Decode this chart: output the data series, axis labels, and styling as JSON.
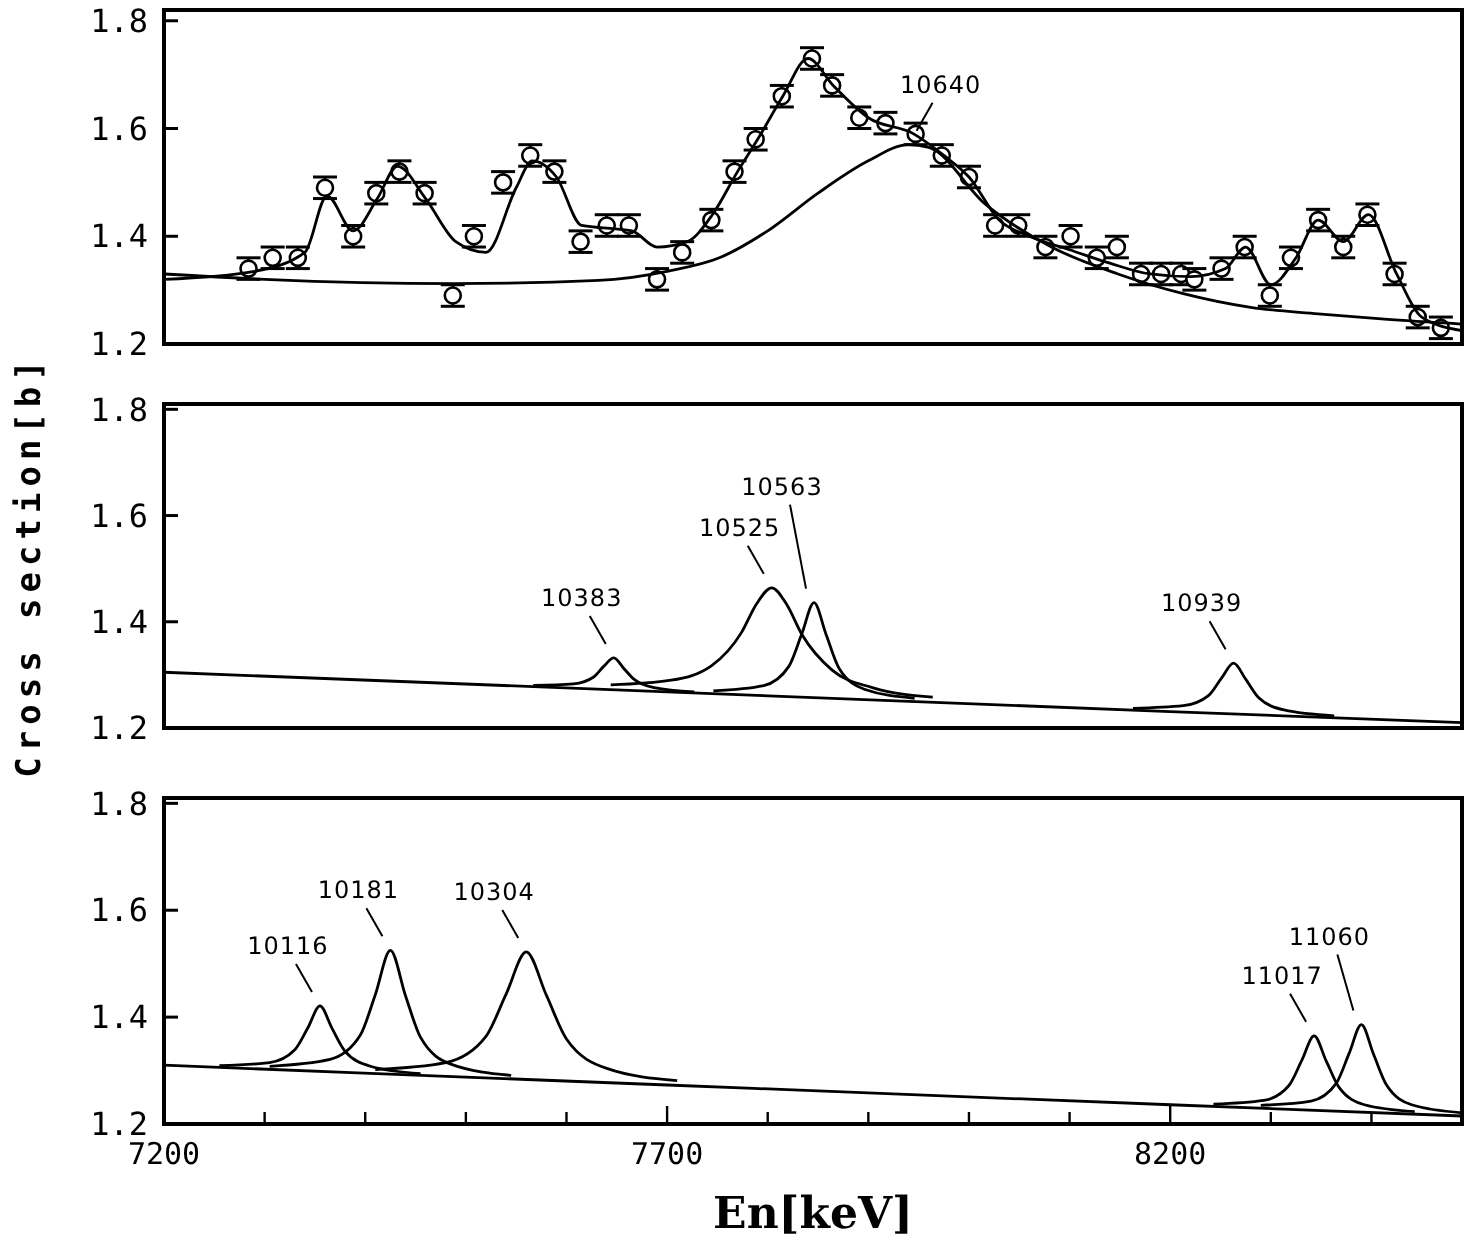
{
  "chart_data": [
    {
      "type": "line",
      "xlim": [
        7200,
        8490
      ],
      "ylim": [
        1.2,
        1.82
      ],
      "yticks": [
        1.2,
        1.4,
        1.6,
        1.8
      ],
      "tick_labels": "y",
      "line_style": "solid",
      "annotations": [
        {
          "text": "10640",
          "x": 7940,
          "y": 1.57
        }
      ],
      "series": [
        {
          "type": "scatter",
          "marker": "circle",
          "color": "#000000",
          "errors": [
            0.02,
            0.02,
            0.02,
            0.02,
            0.02,
            0.02,
            0.02,
            0.02,
            0.02,
            0.02,
            0.02,
            0.02,
            0.02,
            0.02,
            0.02,
            0.02,
            0.02,
            0.02,
            0.02,
            0.02,
            0.02,
            0.02,
            0.02,
            0.02,
            0.02,
            0.02,
            0.02,
            0.02,
            0.02,
            0.02,
            0.02,
            0.02,
            0.02,
            0.02,
            0.02,
            0.02,
            0.02,
            0.02,
            0.02,
            0.02,
            0.02,
            0.02,
            0.02,
            0.02,
            0.02,
            0.02,
            0.02,
            0.02,
            0.02
          ],
          "x": [
            7284,
            7308,
            7333,
            7360,
            7388,
            7411,
            7434,
            7459,
            7487,
            7508,
            7537,
            7564,
            7588,
            7614,
            7640,
            7662,
            7690,
            7715,
            7744,
            7767,
            7788,
            7814,
            7844,
            7864,
            7891,
            7917,
            7947,
            7973,
            8000,
            8026,
            8049,
            8076,
            8101,
            8127,
            8147,
            8171,
            8191,
            8211,
            8224,
            8251,
            8274,
            8299,
            8320,
            8347,
            8372,
            8396,
            8423,
            8446,
            8469
          ],
          "values": [
            1.34,
            1.36,
            1.36,
            1.49,
            1.4,
            1.48,
            1.52,
            1.48,
            1.29,
            1.4,
            1.5,
            1.55,
            1.52,
            1.39,
            1.42,
            1.42,
            1.32,
            1.37,
            1.43,
            1.52,
            1.58,
            1.66,
            1.73,
            1.68,
            1.62,
            1.61,
            1.59,
            1.55,
            1.51,
            1.42,
            1.42,
            1.38,
            1.4,
            1.36,
            1.38,
            1.33,
            1.33,
            1.33,
            1.32,
            1.34,
            1.38,
            1.29,
            1.36,
            1.43,
            1.38,
            1.44,
            1.33,
            1.25,
            1.23
          ]
        },
        {
          "type": "line",
          "color": "#000000",
          "x": [
            7200,
            7290,
            7340,
            7362,
            7388,
            7412,
            7432,
            7460,
            7490,
            7520,
            7550,
            7566,
            7590,
            7615,
            7640,
            7665,
            7690,
            7720,
            7745,
            7770,
            7790,
            7815,
            7840,
            7865,
            7900,
            7945,
            7975,
            8000,
            8030,
            8060,
            8100,
            8140,
            8180,
            8220,
            8255,
            8275,
            8300,
            8325,
            8347,
            8372,
            8397,
            8425,
            8450,
            8490
          ],
          "values": [
            1.32,
            1.335,
            1.37,
            1.475,
            1.41,
            1.47,
            1.53,
            1.47,
            1.39,
            1.37,
            1.49,
            1.54,
            1.51,
            1.42,
            1.415,
            1.41,
            1.38,
            1.39,
            1.44,
            1.52,
            1.58,
            1.66,
            1.73,
            1.68,
            1.62,
            1.59,
            1.55,
            1.51,
            1.43,
            1.4,
            1.375,
            1.35,
            1.33,
            1.325,
            1.34,
            1.38,
            1.31,
            1.36,
            1.43,
            1.39,
            1.44,
            1.33,
            1.25,
            1.225
          ]
        },
        {
          "type": "line",
          "color": "#000000",
          "x": [
            7200,
            7300,
            7487,
            7632,
            7700,
            7752,
            7800,
            7850,
            7900,
            7940,
            7960,
            8016,
            8082,
            8148,
            8214,
            8280,
            8347,
            8413,
            8490
          ],
          "values": [
            1.33,
            1.32,
            1.312,
            1.318,
            1.335,
            1.36,
            1.41,
            1.48,
            1.54,
            1.57,
            1.565,
            1.46,
            1.38,
            1.33,
            1.293,
            1.268,
            1.256,
            1.246,
            1.237
          ]
        }
      ]
    },
    {
      "type": "line",
      "xlim": [
        7200,
        8490
      ],
      "ylim": [
        1.2,
        1.81
      ],
      "yticks": [
        1.2,
        1.4,
        1.6,
        1.8
      ],
      "tick_labels": "y",
      "line_style": "solid",
      "ylabel": "Cross section[b]",
      "annotations": [
        {
          "text": "10383",
          "x": 7647,
          "y": 1.332
        },
        {
          "text": "10525",
          "x": 7804,
          "y": 1.464
        },
        {
          "text": "10563",
          "x": 7846,
          "y": 1.436
        },
        {
          "text": "10939",
          "x": 8263,
          "y": 1.322
        }
      ],
      "series": [
        {
          "type": "line",
          "color": "#000000",
          "x": [
            7200,
            7700,
            8200,
            8490
          ],
          "values": [
            1.305,
            1.268,
            1.231,
            1.21
          ]
        },
        {
          "type": "line",
          "color": "#000000",
          "x": [
            7567,
            7607,
            7627,
            7637,
            7647,
            7657,
            7667,
            7687,
            7727
          ],
          "values": [
            1.28,
            1.283,
            1.296,
            1.316,
            1.332,
            1.312,
            1.292,
            1.276,
            1.268
          ]
        },
        {
          "type": "line",
          "color": "#000000",
          "x": [
            7644,
            7704,
            7744,
            7774,
            7789,
            7804,
            7819,
            7834,
            7864,
            7904,
            7964
          ],
          "values": [
            1.281,
            1.29,
            1.317,
            1.38,
            1.434,
            1.464,
            1.432,
            1.376,
            1.309,
            1.276,
            1.258
          ]
        },
        {
          "type": "line",
          "color": "#000000",
          "x": [
            7746,
            7796,
            7821,
            7834,
            7846,
            7858,
            7871,
            7896,
            7946
          ],
          "values": [
            1.27,
            1.28,
            1.316,
            1.378,
            1.436,
            1.376,
            1.312,
            1.273,
            1.256
          ]
        },
        {
          "type": "line",
          "color": "#000000",
          "x": [
            8163,
            8213,
            8238,
            8251,
            8263,
            8275,
            8288,
            8313,
            8363
          ],
          "values": [
            1.237,
            1.242,
            1.261,
            1.294,
            1.322,
            1.292,
            1.257,
            1.234,
            1.223
          ]
        }
      ]
    },
    {
      "type": "line",
      "xlim": [
        7200,
        8490
      ],
      "ylim": [
        1.2,
        1.81
      ],
      "yticks": [
        1.2,
        1.4,
        1.6,
        1.8
      ],
      "line_style": "solid",
      "xlabel": "En[keV]",
      "xticks": [
        7200,
        {
          "value": 7300,
          "label": null
        },
        {
          "value": 7400,
          "label": null
        },
        {
          "value": 7500,
          "label": null
        },
        {
          "value": 7600,
          "label": null
        },
        7700,
        {
          "value": 7800,
          "label": null
        },
        {
          "value": 7900,
          "label": null
        },
        {
          "value": 8000,
          "label": null
        },
        {
          "value": 8100,
          "label": null
        },
        8200,
        {
          "value": 8300,
          "label": null
        },
        {
          "value": 8400,
          "label": null
        }
      ],
      "annotations": [
        {
          "text": "10116",
          "x": 7355,
          "y": 1.421
        },
        {
          "text": "10181",
          "x": 7425,
          "y": 1.525
        },
        {
          "text": "10304",
          "x": 7560,
          "y": 1.522
        },
        {
          "text": "11017",
          "x": 8343,
          "y": 1.365
        },
        {
          "text": "11060",
          "x": 8390,
          "y": 1.386
        }
      ],
      "series": [
        {
          "type": "line",
          "color": "#000000",
          "x": [
            7200,
            7700,
            8200,
            8490
          ],
          "values": [
            1.31,
            1.273,
            1.236,
            1.215
          ]
        },
        {
          "type": "line",
          "color": "#000000",
          "x": [
            7255,
            7305,
            7330,
            7343,
            7355,
            7367,
            7380,
            7405,
            7455
          ],
          "values": [
            1.309,
            1.315,
            1.339,
            1.38,
            1.421,
            1.379,
            1.336,
            1.308,
            1.294
          ]
        },
        {
          "type": "line",
          "color": "#000000",
          "x": [
            7305,
            7365,
            7395,
            7410,
            7425,
            7440,
            7455,
            7485,
            7545
          ],
          "values": [
            1.308,
            1.321,
            1.366,
            1.442,
            1.525,
            1.44,
            1.362,
            1.312,
            1.291
          ]
        },
        {
          "type": "line",
          "color": "#000000",
          "x": [
            7410,
            7480,
            7520,
            7540,
            7560,
            7580,
            7600,
            7640,
            7710
          ],
          "values": [
            1.302,
            1.315,
            1.364,
            1.443,
            1.522,
            1.441,
            1.359,
            1.304,
            1.281
          ]
        },
        {
          "type": "line",
          "color": "#000000",
          "x": [
            8243,
            8293,
            8318,
            8331,
            8343,
            8355,
            8368,
            8393,
            8443
          ],
          "values": [
            1.237,
            1.244,
            1.272,
            1.32,
            1.365,
            1.318,
            1.268,
            1.236,
            1.223
          ]
        },
        {
          "type": "line",
          "color": "#000000",
          "x": [
            8290,
            8340,
            8365,
            8378,
            8390,
            8402,
            8415,
            8440,
            8490
          ],
          "values": [
            1.235,
            1.243,
            1.276,
            1.333,
            1.386,
            1.331,
            1.273,
            1.236,
            1.221
          ]
        }
      ]
    }
  ]
}
